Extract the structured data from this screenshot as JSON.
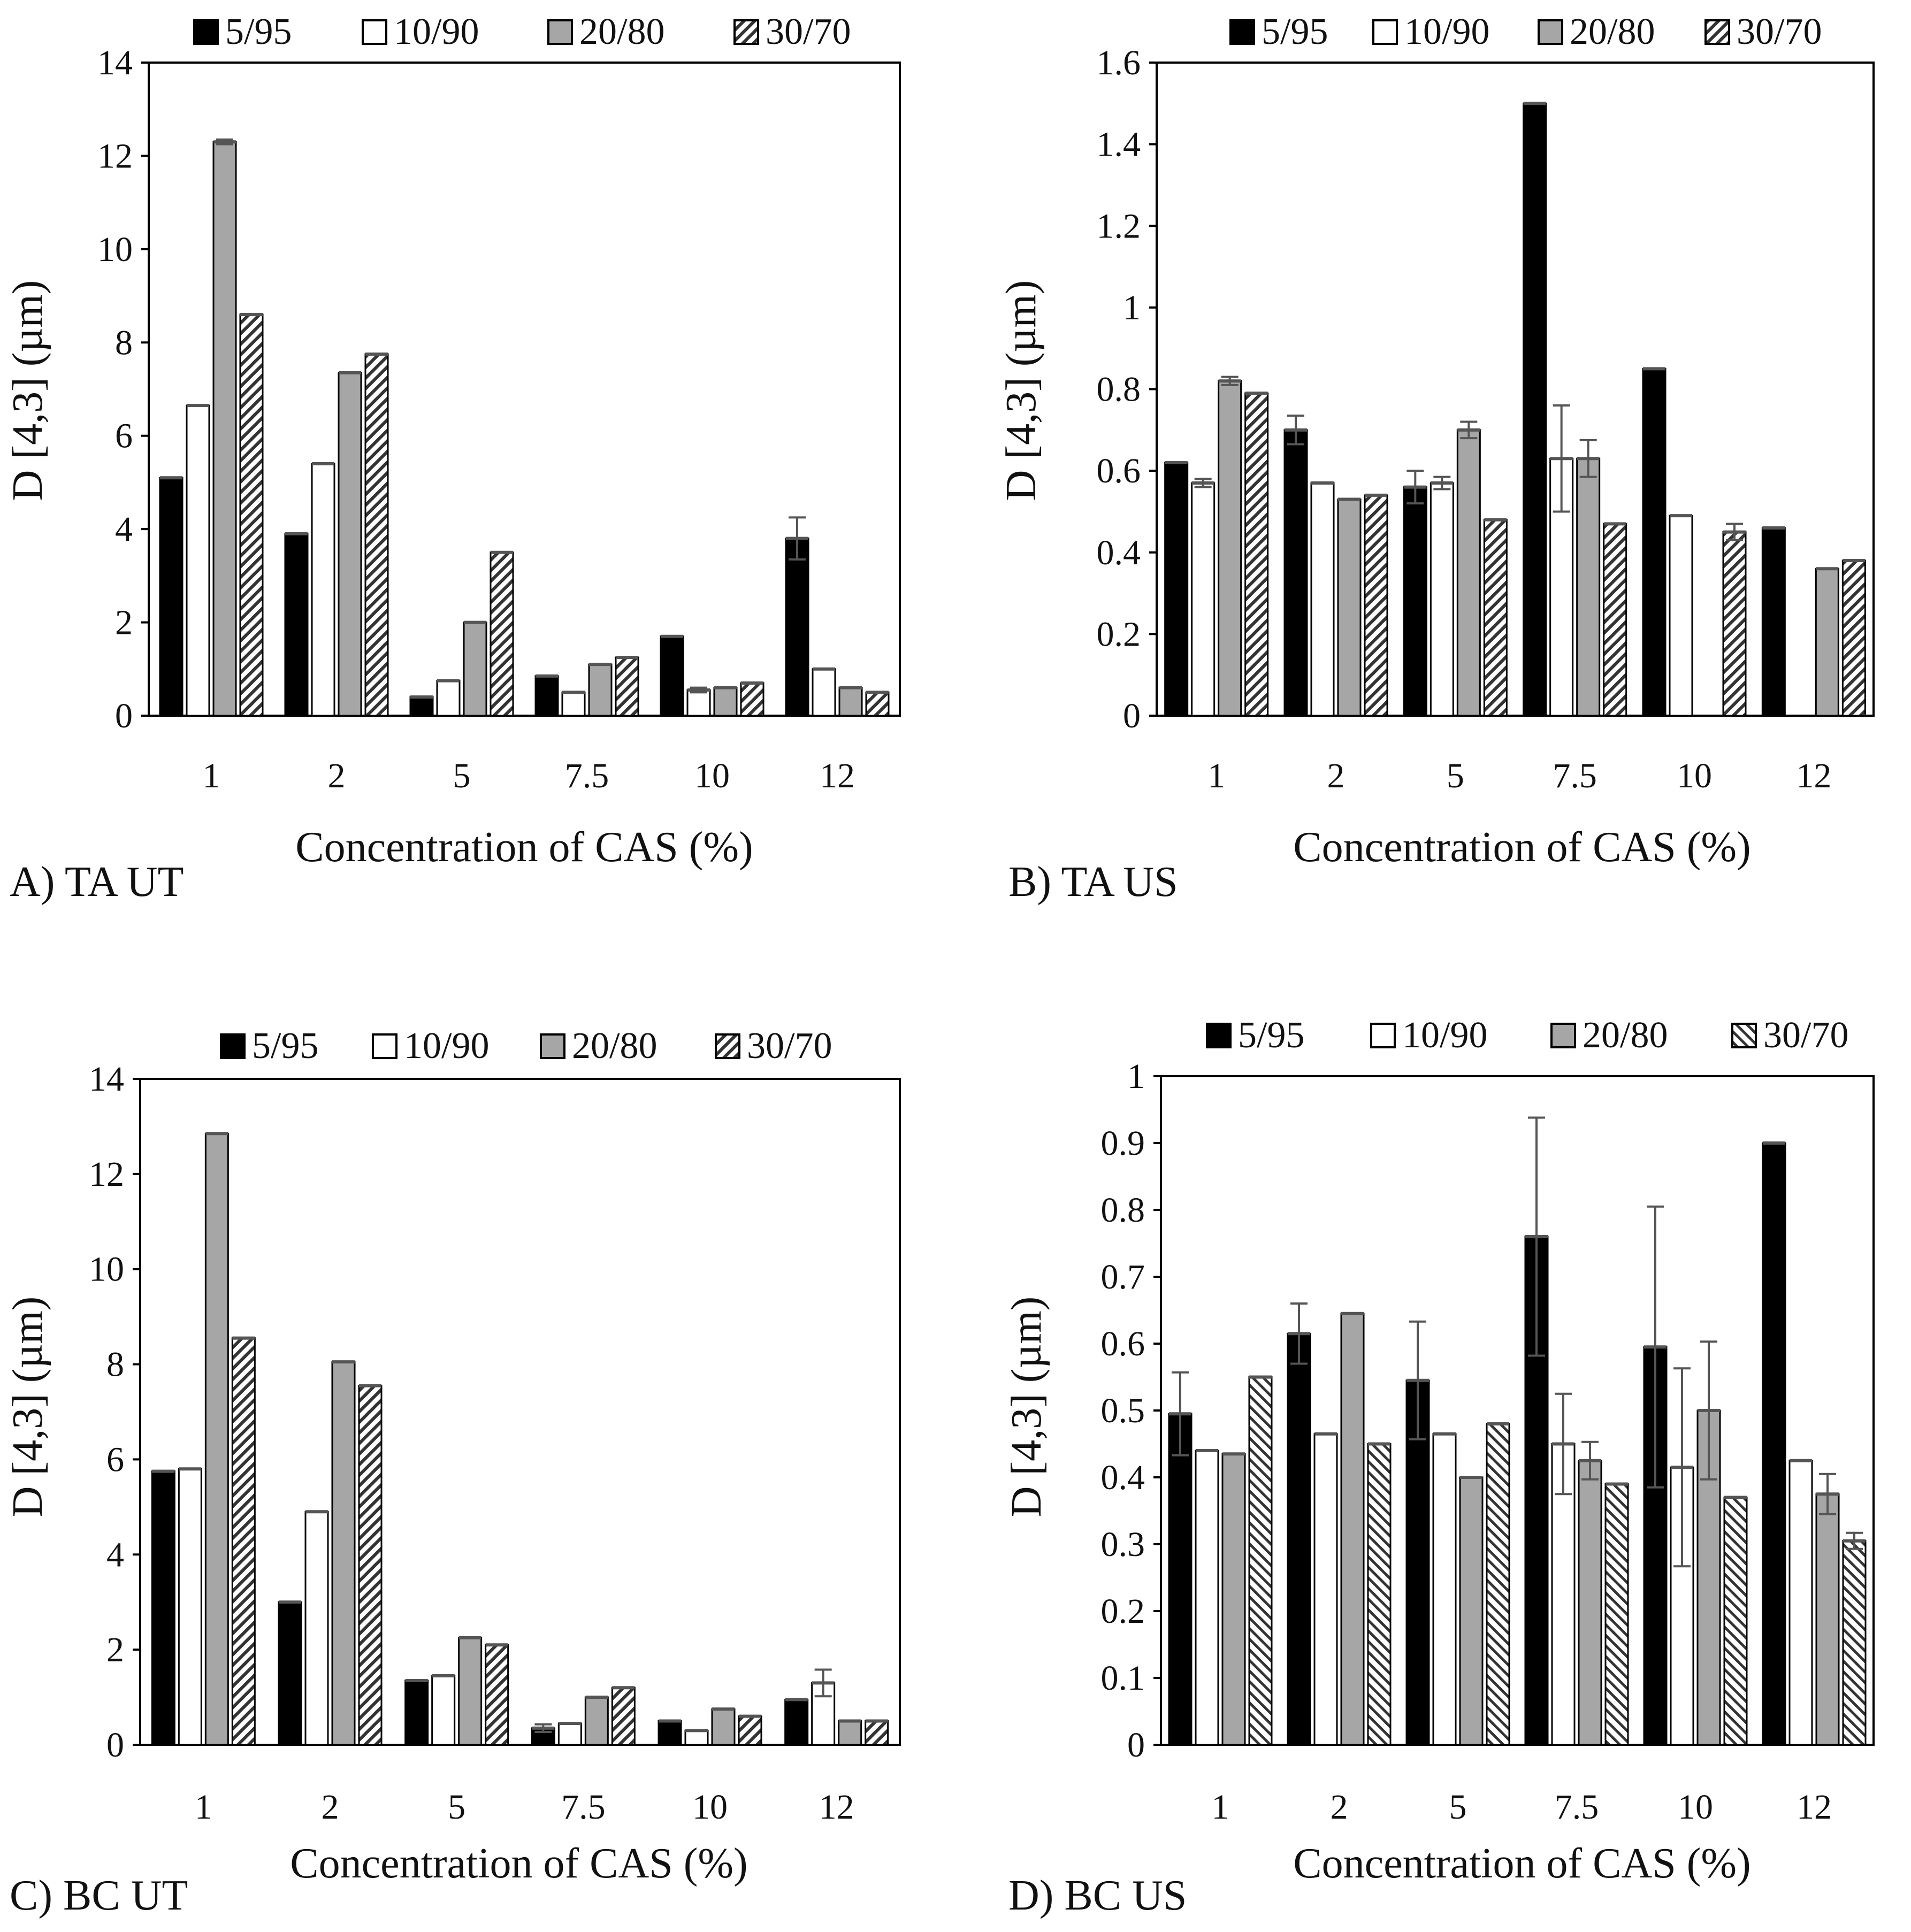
{
  "chart_data": [
    {
      "type": "bar",
      "panel_label": "A) TA UT",
      "xlabel": "Concentration of CAS (%)",
      "ylabel": "D [4,3] (µm)",
      "ylim": [
        0,
        14
      ],
      "ytick_labels": [
        "0",
        "2",
        "4",
        "6",
        "8",
        "10",
        "12",
        "14"
      ],
      "categories": [
        "1",
        "2",
        "5",
        "7.5",
        "10",
        "12"
      ],
      "legend_position": "top",
      "series": [
        {
          "name": "5/95",
          "fill": "solid-black",
          "values": [
            5.1,
            3.9,
            0.4,
            0.85,
            1.7,
            3.8
          ],
          "errors": [
            0,
            0,
            0,
            0,
            0,
            0.45
          ]
        },
        {
          "name": "10/90",
          "fill": "white",
          "values": [
            6.65,
            5.4,
            0.75,
            0.5,
            0.55,
            1.0
          ],
          "errors": [
            0,
            0,
            0,
            0,
            0.05,
            0
          ]
        },
        {
          "name": "20/80",
          "fill": "grey",
          "values": [
            12.3,
            7.35,
            2.0,
            1.1,
            0.6,
            0.6
          ],
          "errors": [
            0.05,
            0,
            0,
            0,
            0,
            0
          ]
        },
        {
          "name": "30/70",
          "fill": "hatched",
          "values": [
            8.6,
            7.75,
            3.5,
            1.25,
            0.7,
            0.5
          ],
          "errors": [
            0,
            0,
            0,
            0,
            0,
            0
          ]
        }
      ]
    },
    {
      "type": "bar",
      "panel_label": "B) TA US",
      "xlabel": "Concentration of CAS (%)",
      "ylabel": "D [4,3] (µm)",
      "ylim": [
        0,
        1.6
      ],
      "ytick_labels": [
        "0",
        "0.2",
        "0.4",
        "0.6",
        "0.8",
        "1",
        "1.2",
        "1.4",
        "1.6"
      ],
      "categories": [
        "1",
        "2",
        "5",
        "7.5",
        "10",
        "12"
      ],
      "legend_position": "top",
      "series": [
        {
          "name": "5/95",
          "fill": "solid-black",
          "values": [
            0.62,
            0.7,
            0.56,
            1.5,
            0.85,
            0.46
          ],
          "errors": [
            0,
            0.035,
            0.04,
            0,
            0,
            0
          ]
        },
        {
          "name": "10/90",
          "fill": "white",
          "values": [
            0.57,
            0.57,
            0.57,
            0.63,
            0.49,
            null
          ],
          "errors": [
            0.01,
            0,
            0.015,
            0.13,
            0,
            0
          ]
        },
        {
          "name": "20/80",
          "fill": "grey",
          "values": [
            0.82,
            0.53,
            0.7,
            0.63,
            null,
            0.36
          ],
          "errors": [
            0.01,
            0,
            0.02,
            0.045,
            0,
            0
          ]
        },
        {
          "name": "30/70",
          "fill": "hatched",
          "values": [
            0.79,
            0.54,
            0.48,
            0.47,
            0.45,
            0.38
          ],
          "errors": [
            0,
            0,
            0,
            0,
            0.02,
            0
          ]
        }
      ]
    },
    {
      "type": "bar",
      "panel_label": "C) BC UT",
      "xlabel": "Concentration of CAS (%)",
      "ylabel": "D [4,3] (µm)",
      "ylim": [
        0,
        14
      ],
      "ytick_labels": [
        "0",
        "2",
        "4",
        "6",
        "8",
        "10",
        "12",
        "14"
      ],
      "categories": [
        "1",
        "2",
        "5",
        "7.5",
        "10",
        "12"
      ],
      "legend_position": "top",
      "series": [
        {
          "name": "5/95",
          "fill": "solid-black",
          "values": [
            5.75,
            3.0,
            1.35,
            0.35,
            0.5,
            0.95
          ],
          "errors": [
            0,
            0,
            0,
            0.08,
            0,
            0
          ]
        },
        {
          "name": "10/90",
          "fill": "white",
          "values": [
            5.8,
            4.9,
            1.45,
            0.45,
            0.3,
            1.3
          ],
          "errors": [
            0,
            0,
            0,
            0,
            0,
            0.28
          ]
        },
        {
          "name": "20/80",
          "fill": "grey",
          "values": [
            12.85,
            8.05,
            2.25,
            1.0,
            0.75,
            0.5
          ],
          "errors": [
            0,
            0,
            0,
            0,
            0,
            0
          ]
        },
        {
          "name": "30/70",
          "fill": "hatched",
          "values": [
            8.55,
            7.55,
            2.1,
            1.2,
            0.6,
            0.5
          ],
          "errors": [
            0,
            0,
            0,
            0,
            0,
            0
          ]
        }
      ]
    },
    {
      "type": "bar",
      "panel_label": "D) BC US",
      "xlabel": "Concentration of CAS (%)",
      "ylabel": "D [4,3] (µm)",
      "ylim": [
        0,
        1
      ],
      "ytick_labels": [
        "0",
        "0.1",
        "0.2",
        "0.3",
        "0.4",
        "0.5",
        "0.6",
        "0.7",
        "0.8",
        "0.9",
        "1"
      ],
      "categories": [
        "1",
        "2",
        "5",
        "7.5",
        "10",
        "12"
      ],
      "legend_position": "top",
      "series": [
        {
          "name": "5/95",
          "fill": "solid-black",
          "values": [
            0.495,
            0.615,
            0.545,
            0.76,
            0.595,
            0.9
          ],
          "errors": [
            0.062,
            0.045,
            0.088,
            0.178,
            0.21,
            0
          ]
        },
        {
          "name": "10/90",
          "fill": "white",
          "values": [
            0.44,
            0.465,
            0.465,
            0.45,
            0.415,
            0.425
          ],
          "errors": [
            0,
            0,
            0,
            0.075,
            0.148,
            0
          ]
        },
        {
          "name": "20/80",
          "fill": "grey",
          "values": [
            0.435,
            0.645,
            0.4,
            0.425,
            0.5,
            0.375
          ],
          "errors": [
            0,
            0,
            0,
            0.028,
            0.103,
            0.03
          ]
        },
        {
          "name": "30/70",
          "fill": "hatched-diagonal",
          "values": [
            0.55,
            0.45,
            0.48,
            0.39,
            0.37,
            0.305
          ],
          "errors": [
            0,
            0,
            0,
            0,
            0,
            0.012
          ]
        }
      ]
    }
  ]
}
